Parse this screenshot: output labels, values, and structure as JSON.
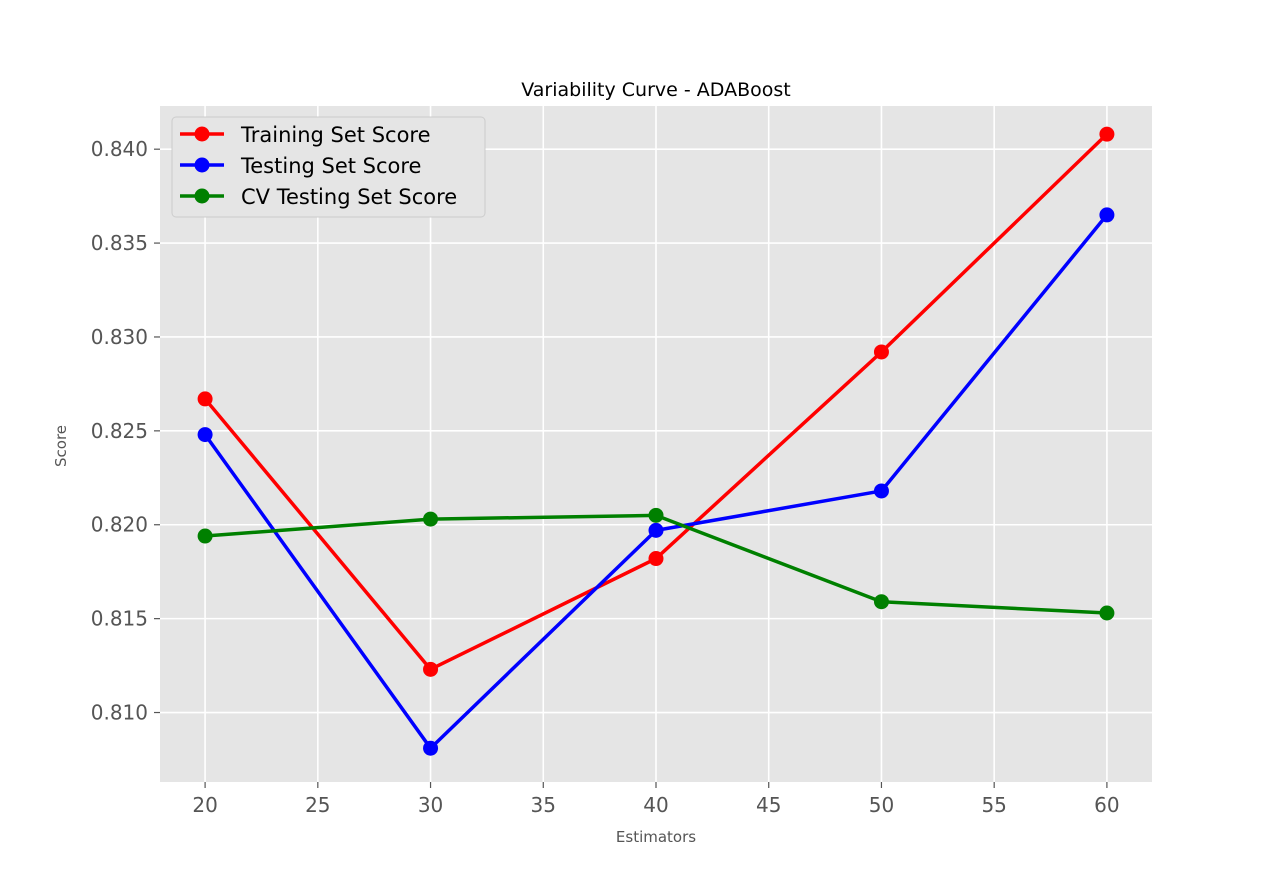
{
  "chart_data": {
    "type": "line",
    "title": "Variability Curve - ADABoost",
    "xlabel": "Estimators",
    "ylabel": "Score",
    "x": [
      20,
      30,
      40,
      50,
      60
    ],
    "xlim": [
      18,
      62
    ],
    "ylim": [
      0.8063,
      0.8423
    ],
    "xticks": [
      20,
      25,
      30,
      35,
      40,
      45,
      50,
      55,
      60
    ],
    "yticks": [
      0.81,
      0.815,
      0.82,
      0.825,
      0.83,
      0.835,
      0.84
    ],
    "ytick_labels": [
      "0.810",
      "0.815",
      "0.820",
      "0.825",
      "0.830",
      "0.835",
      "0.840"
    ],
    "grid": true,
    "legend_position": "top-left",
    "series": [
      {
        "name": "Training Set Score",
        "color": "#ff0000",
        "values": [
          0.8267,
          0.8123,
          0.8182,
          0.8292,
          0.8408
        ]
      },
      {
        "name": "Testing Set Score",
        "color": "#0000ff",
        "values": [
          0.8248,
          0.8081,
          0.8197,
          0.8218,
          0.8365
        ]
      },
      {
        "name": "CV Testing Set Score",
        "color": "#008000",
        "values": [
          0.8194,
          0.8203,
          0.8205,
          0.8159,
          0.8153
        ]
      }
    ]
  }
}
